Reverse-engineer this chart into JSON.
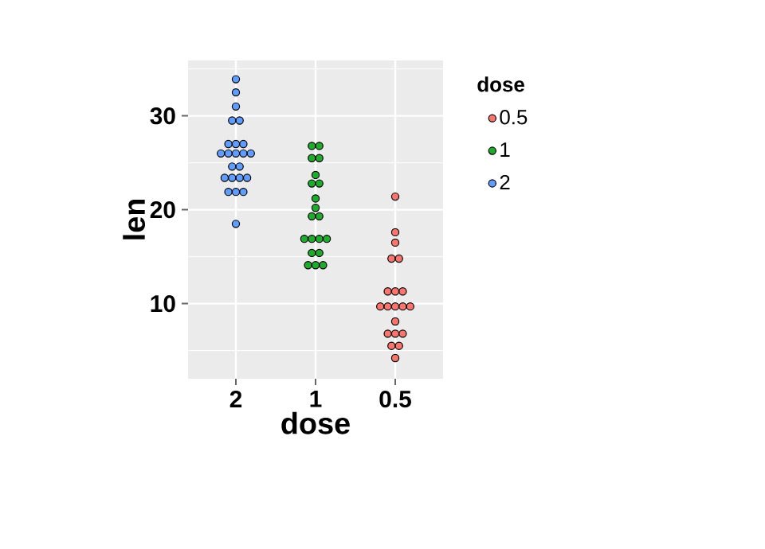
{
  "chart_data": {
    "type": "scatter",
    "xlabel": "dose",
    "ylabel": "len",
    "legend_title": "dose",
    "categories": [
      "2",
      "1",
      "0.5"
    ],
    "ylim": [
      2.0,
      35.9
    ],
    "yticks": [
      10,
      20,
      30
    ],
    "grid": true,
    "legend": "right",
    "marker": "circle",
    "series": [
      {
        "name": "0.5",
        "color": "#f8766d",
        "x": [
          "0.5",
          "0.5",
          "0.5",
          "0.5",
          "0.5",
          "0.5",
          "0.5",
          "0.5",
          "0.5",
          "0.5",
          "0.5",
          "0.5",
          "0.5",
          "0.5",
          "0.5",
          "0.5",
          "0.5",
          "0.5",
          "0.5",
          "0.5"
        ],
        "values": [
          21.4,
          17.6,
          16.5,
          14.8,
          14.8,
          11.3,
          11.3,
          11.3,
          9.7,
          9.7,
          9.7,
          9.7,
          9.7,
          8.1,
          6.8,
          6.8,
          6.8,
          5.5,
          5.5,
          4.2
        ]
      },
      {
        "name": "1",
        "color": "#1fab2b",
        "x": [
          "1",
          "1",
          "1",
          "1",
          "1",
          "1",
          "1",
          "1",
          "1",
          "1",
          "1",
          "1",
          "1",
          "1",
          "1",
          "1",
          "1",
          "1",
          "1",
          "1"
        ],
        "values": [
          26.8,
          26.8,
          25.5,
          25.5,
          23.7,
          22.8,
          22.8,
          21.2,
          20.2,
          19.3,
          19.3,
          16.9,
          16.9,
          16.9,
          16.9,
          15.4,
          15.4,
          14.1,
          14.1,
          14.1
        ]
      },
      {
        "name": "2",
        "color": "#619cff",
        "x": [
          "2",
          "2",
          "2",
          "2",
          "2",
          "2",
          "2",
          "2",
          "2",
          "2",
          "2",
          "2",
          "2",
          "2",
          "2",
          "2",
          "2",
          "2",
          "2",
          "2",
          "2",
          "2",
          "2"
        ],
        "values": [
          33.9,
          32.5,
          31.0,
          29.5,
          29.5,
          27.0,
          27.0,
          27.0,
          26.0,
          26.0,
          26.0,
          26.0,
          26.0,
          24.6,
          24.6,
          23.4,
          23.4,
          23.4,
          23.4,
          21.9,
          21.9,
          21.9,
          18.5
        ]
      }
    ]
  }
}
